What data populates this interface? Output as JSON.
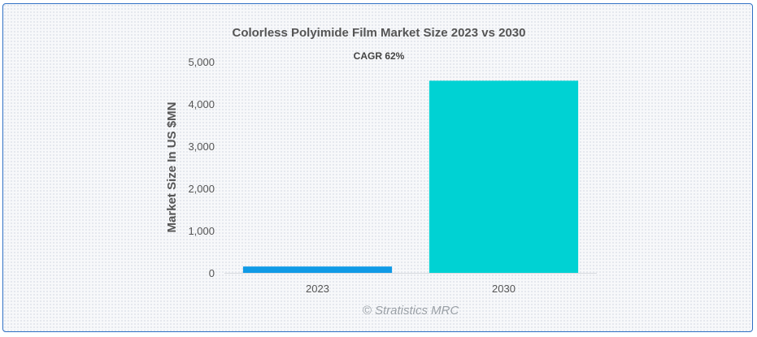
{
  "chart_data": {
    "type": "bar",
    "title": "Colorless Polyimide Film Market Size 2023 vs 2030",
    "subtitle": "CAGR 62%",
    "xlabel": "",
    "ylabel": "Market Size In US $MN",
    "categories": [
      "2023",
      "2030"
    ],
    "values": [
      150,
      4550
    ],
    "colors": [
      "#0f9ae6",
      "#00d2d3"
    ],
    "ylim": [
      0,
      5000
    ],
    "yticks": [
      0,
      1000,
      2000,
      3000,
      4000,
      5000
    ],
    "ytick_labels": [
      "0",
      "1,000",
      "2,000",
      "3,000",
      "4,000",
      "5,000"
    ],
    "grid": false,
    "legend": "none"
  },
  "credit": "© Stratistics MRC"
}
